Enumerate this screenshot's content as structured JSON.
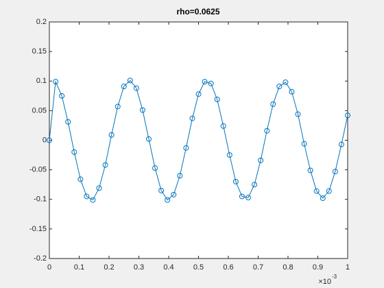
{
  "chart_data": {
    "type": "line",
    "title": "rho=0.0625",
    "x": [
      0,
      0.0208,
      0.0417,
      0.0625,
      0.0833,
      0.1042,
      0.125,
      0.1458,
      0.1667,
      0.1875,
      0.2083,
      0.2292,
      0.25,
      0.2708,
      0.2917,
      0.3125,
      0.3333,
      0.3542,
      0.375,
      0.3958,
      0.4167,
      0.4375,
      0.4583,
      0.4792,
      0.5,
      0.5208,
      0.5417,
      0.5625,
      0.5833,
      0.6042,
      0.625,
      0.6458,
      0.6667,
      0.6875,
      0.7083,
      0.7292,
      0.75,
      0.7708,
      0.7917,
      0.8125,
      0.8333,
      0.8542,
      0.875,
      0.8958,
      0.9167,
      0.9375,
      0.9583,
      0.9792,
      1
    ],
    "series": [
      {
        "color": "#0072bd",
        "marker": "circle",
        "values": [
          0,
          0.099,
          0.075,
          0.031,
          -0.02,
          -0.066,
          -0.095,
          -0.101,
          -0.081,
          -0.042,
          0.009,
          0.057,
          0.091,
          0.101,
          0.088,
          0.051,
          0.002,
          -0.047,
          -0.085,
          -0.101,
          -0.092,
          -0.06,
          -0.013,
          0.037,
          0.078,
          0.099,
          0.096,
          0.069,
          0.024,
          -0.025,
          -0.07,
          -0.095,
          -0.097,
          -0.075,
          -0.034,
          0.016,
          0.061,
          0.091,
          0.098,
          0.082,
          0.044,
          -0.006,
          -0.051,
          -0.086,
          -0.098,
          -0.086,
          -0.053,
          -0.007,
          0.042
        ]
      }
    ],
    "xlim": [
      0,
      1
    ],
    "xticks": [
      0,
      0.1,
      0.2,
      0.3,
      0.4,
      0.5,
      0.6,
      0.7,
      0.8,
      0.9,
      1
    ],
    "x_multiplier": {
      "base": "×10",
      "exponent": "-3"
    },
    "ylim": [
      -0.2,
      0.2
    ],
    "yticks": [
      -0.2,
      -0.15,
      -0.1,
      -0.05,
      0,
      0.05,
      0.1,
      0.15,
      0.2
    ],
    "grid": false
  }
}
